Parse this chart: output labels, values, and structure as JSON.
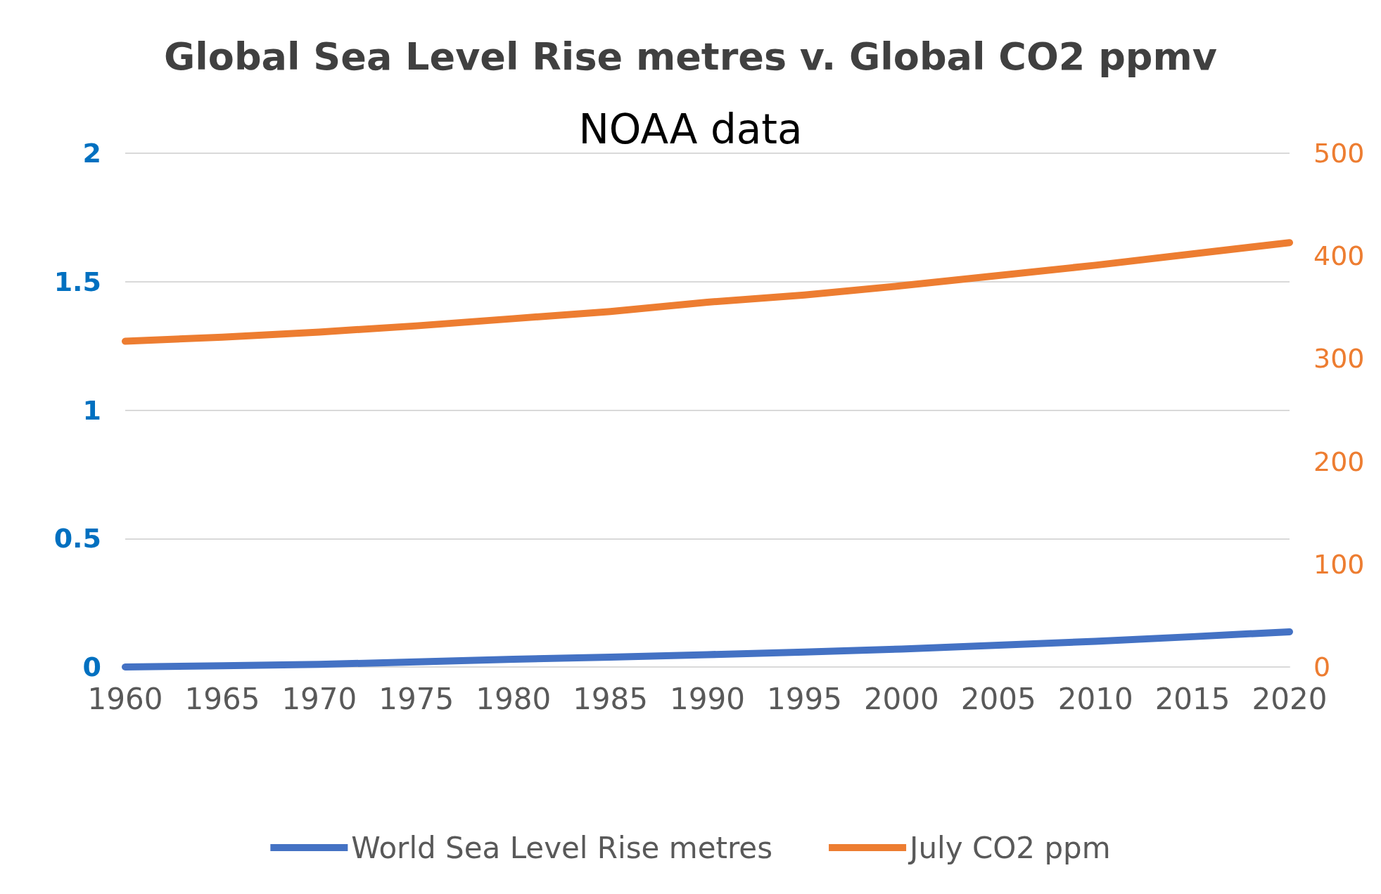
{
  "chart_data": {
    "type": "line",
    "title": "Global Sea Level Rise metres v. Global CO2 ppmv",
    "subtitle": "NOAA data",
    "x": [
      1960,
      1965,
      1970,
      1975,
      1980,
      1985,
      1990,
      1995,
      2000,
      2005,
      2010,
      2015,
      2020
    ],
    "series": [
      {
        "name": "World Sea Level Rise metres",
        "color": "#4472c4",
        "values": [
          0,
          0.005,
          0.01,
          0.02,
          0.03,
          0.038,
          0.048,
          0.058,
          0.07,
          0.085,
          0.1,
          0.118,
          0.137
        ]
      },
      {
        "name": "July CO2 ppm",
        "color": "#ed7d31",
        "axis": "y2",
        "values": [
          317,
          321,
          326,
          332,
          339,
          346,
          355,
          362,
          371,
          381,
          391,
          402,
          413
        ]
      }
    ],
    "xlim": [
      1960,
      2020
    ],
    "xticks": [
      1960,
      1965,
      1970,
      1975,
      1980,
      1985,
      1990,
      1995,
      2000,
      2005,
      2010,
      2015,
      2020
    ],
    "ylim": [
      0,
      2
    ],
    "yticks": [
      0,
      0.5,
      1,
      1.5,
      2
    ],
    "y2lim": [
      0,
      500
    ],
    "y2ticks": [
      0,
      100,
      200,
      300,
      400,
      500
    ],
    "grid": "y",
    "legend": "bottom",
    "line_style": "solid"
  }
}
